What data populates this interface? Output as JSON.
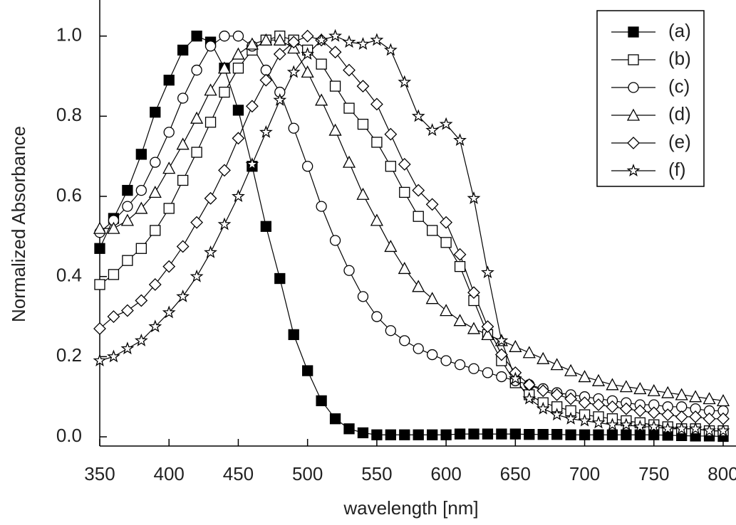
{
  "chart_data": {
    "type": "line",
    "x_label": "wavelength [nm]",
    "y_label": "Normalized Absorbance",
    "x": [
      350,
      360,
      370,
      380,
      390,
      400,
      410,
      420,
      430,
      440,
      450,
      460,
      470,
      480,
      490,
      500,
      510,
      520,
      530,
      540,
      550,
      560,
      570,
      580,
      590,
      600,
      610,
      620,
      630,
      640,
      650,
      660,
      670,
      680,
      690,
      700,
      710,
      720,
      730,
      740,
      750,
      760,
      770,
      780,
      790,
      800
    ],
    "xlim": [
      350,
      800
    ],
    "xticks": [
      350,
      400,
      450,
      500,
      550,
      600,
      650,
      700,
      750,
      800
    ],
    "ylim": [
      -0.023,
      1.09
    ],
    "yticks": [
      {
        "value": 0,
        "label": "0.0"
      },
      0.2,
      0.4,
      0.6,
      0.8,
      {
        "value": 1,
        "label": "1.0"
      }
    ],
    "legend": "top-right",
    "series": [
      {
        "name": "(a)",
        "color": "#000000",
        "marker": "square-filled",
        "values": [
          0.47,
          0.545,
          0.615,
          0.705,
          0.81,
          0.89,
          0.965,
          1.0,
          0.985,
          0.92,
          0.815,
          0.675,
          0.525,
          0.395,
          0.255,
          0.165,
          0.09,
          0.045,
          0.02,
          0.01,
          0.005,
          0.005,
          0.005,
          0.005,
          0.005,
          0.005,
          0.007,
          0.007,
          0.007,
          0.007,
          0.007,
          0.006,
          0.006,
          0.006,
          0.005,
          0.005,
          0.005,
          0.005,
          0.005,
          0.005,
          0.005,
          0.004,
          0.003,
          0.002,
          0.002,
          0.001
        ]
      },
      {
        "name": "(b)",
        "color": "#000000",
        "marker": "square",
        "values": [
          0.38,
          0.405,
          0.44,
          0.47,
          0.515,
          0.57,
          0.64,
          0.71,
          0.785,
          0.86,
          0.92,
          0.965,
          0.99,
          1.0,
          0.99,
          0.965,
          0.93,
          0.875,
          0.82,
          0.78,
          0.735,
          0.675,
          0.61,
          0.55,
          0.515,
          0.485,
          0.425,
          0.34,
          0.255,
          0.19,
          0.135,
          0.105,
          0.085,
          0.075,
          0.065,
          0.055,
          0.05,
          0.045,
          0.04,
          0.035,
          0.03,
          0.025,
          0.02,
          0.02,
          0.015,
          0.015
        ]
      },
      {
        "name": "(c)",
        "color": "#000000",
        "marker": "circle",
        "values": [
          0.51,
          0.54,
          0.575,
          0.615,
          0.685,
          0.76,
          0.845,
          0.915,
          0.975,
          1.0,
          1.0,
          0.975,
          0.915,
          0.86,
          0.77,
          0.675,
          0.575,
          0.49,
          0.415,
          0.35,
          0.3,
          0.265,
          0.24,
          0.22,
          0.205,
          0.19,
          0.18,
          0.17,
          0.16,
          0.15,
          0.14,
          0.13,
          0.12,
          0.11,
          0.105,
          0.1,
          0.095,
          0.09,
          0.085,
          0.08,
          0.08,
          0.075,
          0.075,
          0.07,
          0.065,
          0.065
        ]
      },
      {
        "name": "(d)",
        "color": "#000000",
        "marker": "triangle",
        "values": [
          0.52,
          0.52,
          0.54,
          0.57,
          0.61,
          0.67,
          0.73,
          0.795,
          0.865,
          0.92,
          0.955,
          0.98,
          0.99,
          0.99,
          0.97,
          0.91,
          0.84,
          0.765,
          0.685,
          0.605,
          0.54,
          0.475,
          0.42,
          0.375,
          0.345,
          0.315,
          0.29,
          0.27,
          0.255,
          0.24,
          0.225,
          0.21,
          0.195,
          0.18,
          0.165,
          0.15,
          0.14,
          0.13,
          0.125,
          0.12,
          0.115,
          0.11,
          0.105,
          0.1,
          0.095,
          0.09
        ]
      },
      {
        "name": "(e)",
        "color": "#000000",
        "marker": "diamond",
        "values": [
          0.27,
          0.3,
          0.315,
          0.34,
          0.38,
          0.425,
          0.475,
          0.535,
          0.595,
          0.665,
          0.745,
          0.825,
          0.89,
          0.955,
          0.985,
          1.0,
          0.99,
          0.96,
          0.915,
          0.875,
          0.83,
          0.755,
          0.68,
          0.615,
          0.58,
          0.535,
          0.455,
          0.36,
          0.275,
          0.205,
          0.16,
          0.13,
          0.115,
          0.105,
          0.095,
          0.085,
          0.08,
          0.075,
          0.07,
          0.065,
          0.06,
          0.055,
          0.05,
          0.05,
          0.045,
          0.045
        ]
      },
      {
        "name": "(f)",
        "color": "#000000",
        "marker": "star",
        "values": [
          0.19,
          0.2,
          0.22,
          0.24,
          0.275,
          0.31,
          0.35,
          0.4,
          0.46,
          0.53,
          0.6,
          0.68,
          0.76,
          0.84,
          0.91,
          0.955,
          0.99,
          1.0,
          0.985,
          0.98,
          0.99,
          0.965,
          0.885,
          0.8,
          0.765,
          0.78,
          0.74,
          0.595,
          0.41,
          0.24,
          0.145,
          0.095,
          0.07,
          0.055,
          0.045,
          0.04,
          0.035,
          0.03,
          0.03,
          0.025,
          0.025,
          0.02,
          0.02,
          0.02,
          0.015,
          0.015
        ]
      }
    ]
  }
}
